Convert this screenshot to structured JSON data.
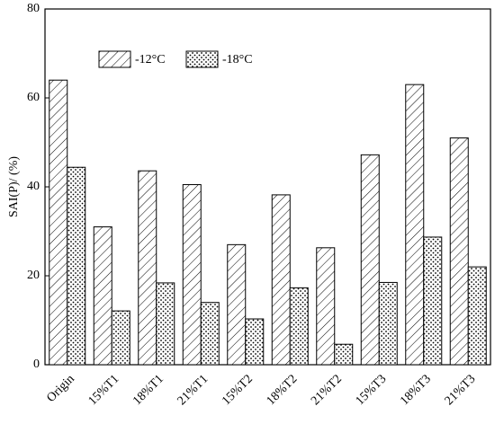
{
  "chart_data": {
    "type": "bar",
    "y_label": "SAI(P)/ (%)",
    "categories": [
      "Origin",
      "15%T1",
      "18%T1",
      "21%T1",
      "15%T2",
      "18%T2",
      "21%T2",
      "15%T3",
      "18%T3",
      "21%T3"
    ],
    "series": [
      {
        "name": "-12°C",
        "color": "#000000",
        "pattern": "hatch",
        "values": [
          64,
          31,
          43.6,
          40.5,
          27,
          38.2,
          26.3,
          47.2,
          63,
          51
        ]
      },
      {
        "name": "-18°C",
        "color": "#000000",
        "pattern": "dots",
        "values": [
          44.4,
          12.1,
          18.4,
          14,
          10.3,
          17.3,
          4.6,
          18.5,
          28.7,
          22
        ]
      }
    ],
    "ylim": [
      0,
      80
    ],
    "yticks": [
      0,
      20,
      40,
      60,
      80
    ],
    "grid": false,
    "legend": "top"
  }
}
